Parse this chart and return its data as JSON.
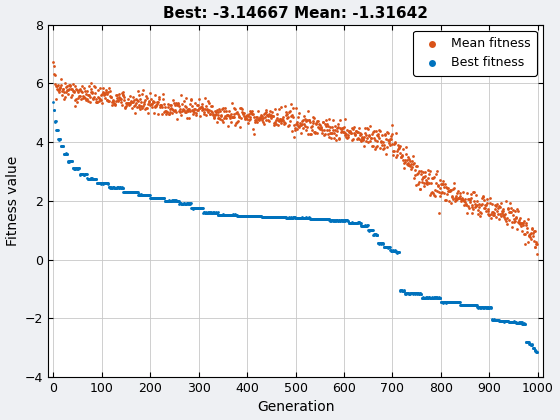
{
  "title": "Best: -3.14667 Mean: -1.31642",
  "xlabel": "Generation",
  "ylabel": "Fitness value",
  "xlim": [
    -10,
    1010
  ],
  "ylim": [
    -4,
    8
  ],
  "xticks": [
    0,
    100,
    200,
    300,
    400,
    500,
    600,
    700,
    800,
    900,
    1000
  ],
  "yticks": [
    -4,
    -2,
    0,
    2,
    4,
    6,
    8
  ],
  "best_color": "#0072BD",
  "mean_color": "#D95319",
  "best_label": "Best fitness",
  "mean_label": "Mean fitness",
  "marker_size": 4,
  "bg_color": "#EEF0F3",
  "axes_bg_color": "#FFFFFF",
  "grid_color": "#C8C8C8",
  "title_fontsize": 11,
  "label_fontsize": 10,
  "tick_fontsize": 9,
  "legend_fontsize": 9
}
